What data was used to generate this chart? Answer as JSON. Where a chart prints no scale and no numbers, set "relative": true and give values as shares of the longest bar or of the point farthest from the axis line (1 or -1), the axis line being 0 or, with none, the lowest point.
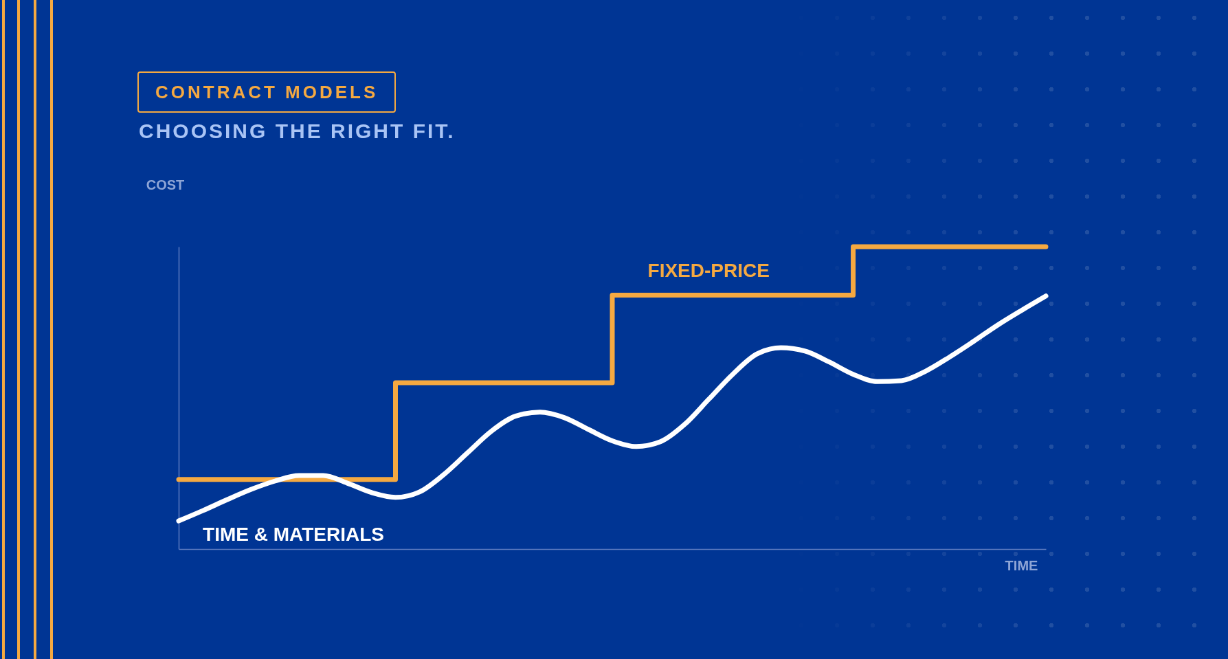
{
  "chart_data": {
    "type": "line",
    "title": "CONTRACT MODELS",
    "subtitle": "CHOOSING THE RIGHT FIT.",
    "xlabel": "TIME",
    "ylabel": "COST",
    "relative": true,
    "grid": false,
    "categories": [
      null,
      null,
      null,
      null,
      null,
      null,
      null,
      null,
      null,
      null,
      null,
      null,
      null,
      null,
      null,
      null,
      null,
      null,
      null,
      null,
      null,
      null,
      null,
      null,
      null,
      null,
      null,
      null,
      null,
      null,
      null,
      null,
      null,
      null,
      null,
      null,
      null
    ],
    "series": [
      {
        "name": "FIXED-PRICE",
        "type": "step",
        "color": "#f5a941",
        "values": [
          0.23,
          0.23,
          0.23,
          0.23,
          0.23,
          0.23,
          0.23,
          0.23,
          0.23,
          0.55,
          0.55,
          0.55,
          0.55,
          0.55,
          0.55,
          0.55,
          0.55,
          0.55,
          0.84,
          0.84,
          0.84,
          0.84,
          0.84,
          0.84,
          0.84,
          0.84,
          0.84,
          0.84,
          1.0,
          1.0,
          1.0,
          1.0,
          1.0,
          1.0,
          1.0,
          1.0,
          1.0
        ]
      },
      {
        "name": "TIME & MATERIALS",
        "type": "line",
        "color": "#ffffff",
        "values": [
          0.093,
          0.127,
          0.163,
          0.197,
          0.225,
          0.243,
          0.243,
          0.218,
          0.187,
          0.171,
          0.189,
          0.246,
          0.319,
          0.391,
          0.44,
          0.453,
          0.435,
          0.396,
          0.358,
          0.339,
          0.355,
          0.412,
          0.495,
          0.578,
          0.645,
          0.666,
          0.655,
          0.619,
          0.578,
          0.554,
          0.557,
          0.588,
          0.635,
          0.687,
          0.741,
          0.79,
          0.837
        ]
      }
    ]
  }
}
